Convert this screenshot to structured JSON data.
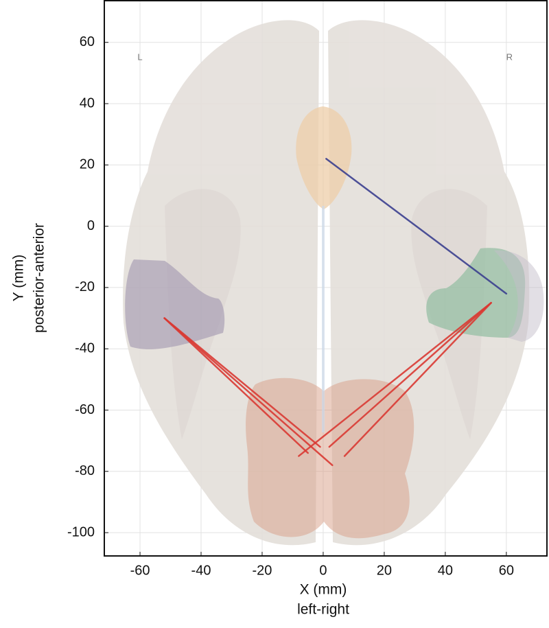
{
  "chart_data": {
    "type": "line",
    "xlabel": "X (mm)",
    "xlabel_sub": "left-right",
    "ylabel": "Y (mm)",
    "ylabel_sub": "posterior-anterior",
    "xlim": [
      -71.7,
      73.3
    ],
    "ylim": [
      -107.6,
      73.6
    ],
    "xticks": [
      -60,
      -40,
      -20,
      0,
      20,
      40,
      60
    ],
    "yticks": [
      -100,
      -80,
      -60,
      -40,
      -20,
      0,
      20,
      40,
      60
    ],
    "grid": true,
    "annotations": [
      {
        "text": "L",
        "x": -60,
        "y": 55
      },
      {
        "text": "R",
        "x": 61,
        "y": 55
      }
    ],
    "series": [
      {
        "color": "#3b3f8f",
        "x": [
          1,
          60
        ],
        "y": [
          22,
          -22
        ]
      },
      {
        "color": "#d93a33",
        "x": [
          -52,
          -5
        ],
        "y": [
          -30,
          -74
        ]
      },
      {
        "color": "#d93a33",
        "x": [
          -52,
          -1
        ],
        "y": [
          -30,
          -72
        ]
      },
      {
        "color": "#d93a33",
        "x": [
          -52,
          3
        ],
        "y": [
          -30,
          -78
        ]
      },
      {
        "color": "#d93a33",
        "x": [
          55,
          -8
        ],
        "y": [
          -25,
          -75
        ]
      },
      {
        "color": "#d93a33",
        "x": [
          55,
          2
        ],
        "y": [
          -25,
          -72
        ]
      },
      {
        "color": "#d93a33",
        "x": [
          55,
          7
        ],
        "y": [
          -25,
          -75
        ]
      }
    ]
  }
}
